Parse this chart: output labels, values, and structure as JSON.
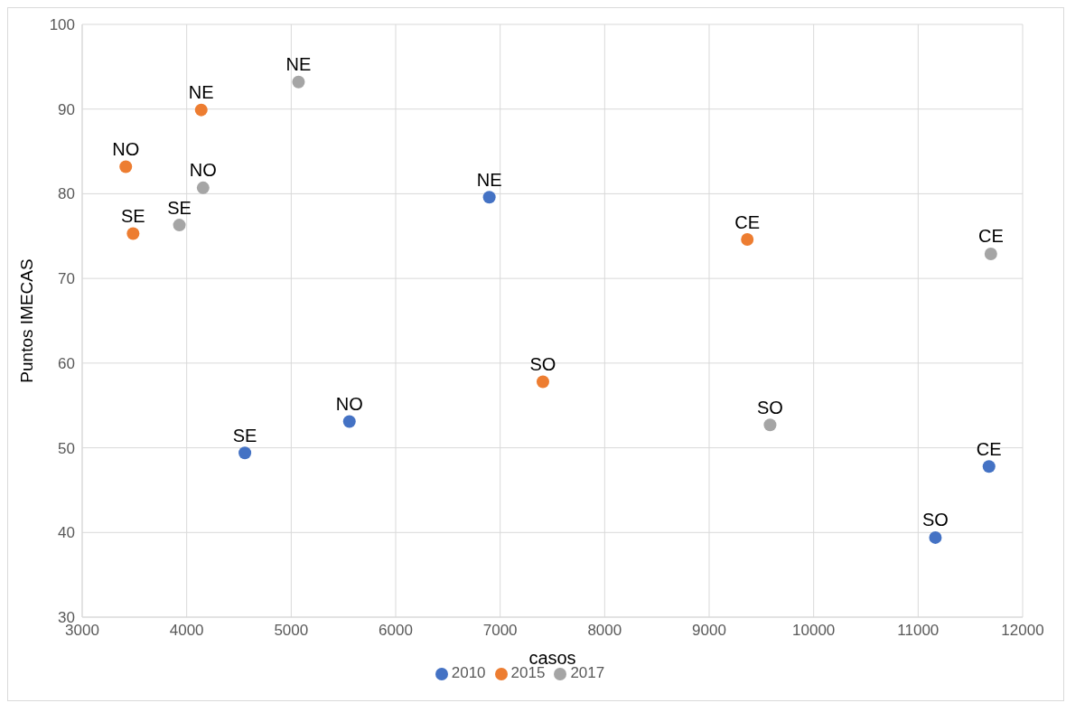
{
  "chart_data": {
    "type": "scatter",
    "xlabel": "casos",
    "ylabel": "Puntos IMECAS",
    "xlim": [
      3000,
      12000
    ],
    "xticks": [
      3000,
      4000,
      5000,
      6000,
      7000,
      8000,
      9000,
      10000,
      11000,
      12000
    ],
    "ylim": [
      30,
      100
    ],
    "yticks": [
      30,
      40,
      50,
      60,
      70,
      80,
      90,
      100
    ],
    "grid": true,
    "legend": "bottom",
    "marker": "circle",
    "series": [
      {
        "name": "2010",
        "color": "#4472c4",
        "x": [
          6896,
          5557,
          4557,
          11165,
          11678
        ],
        "values": [
          79.6,
          53.1,
          49.4,
          39.4,
          47.8
        ],
        "value_labels": [
          "NE",
          "NO",
          "SE",
          "SO",
          "CE"
        ]
      },
      {
        "name": "2015",
        "color": "#ed7d31",
        "x": [
          4139,
          3417,
          3487,
          7409,
          9365
        ],
        "values": [
          89.9,
          83.2,
          75.3,
          57.8,
          74.6
        ],
        "value_labels": [
          "NE",
          "NO",
          "SE",
          "SO",
          "CE"
        ]
      },
      {
        "name": "2017",
        "color": "#a5a5a5",
        "x": [
          5070,
          4157,
          3930,
          9583,
          11696
        ],
        "values": [
          93.2,
          80.7,
          76.3,
          52.7,
          72.9
        ],
        "value_labels": [
          "NE",
          "NO",
          "SE",
          "SO",
          "CE"
        ]
      }
    ]
  }
}
